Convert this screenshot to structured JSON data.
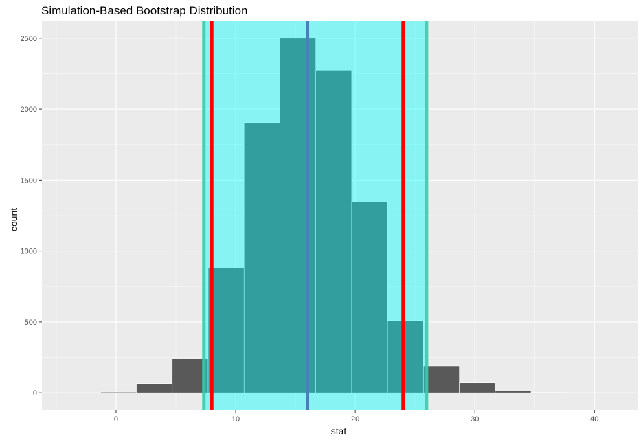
{
  "chart_data": {
    "type": "bar",
    "title": "Simulation-Based Bootstrap Distribution",
    "xlabel": "stat",
    "ylabel": "count",
    "xlim": [
      -6.2,
      43.6
    ],
    "ylim": [
      -125,
      2620
    ],
    "x_ticks": [
      0,
      10,
      20,
      30,
      40
    ],
    "y_ticks": [
      0,
      500,
      1000,
      1500,
      2000,
      2500
    ],
    "grid": true,
    "bins": [
      {
        "x0": -4.3,
        "x1": -1.3,
        "count": 0
      },
      {
        "x0": -1.3,
        "x1": 1.7,
        "count": 5
      },
      {
        "x0": 1.7,
        "x1": 4.7,
        "count": 65
      },
      {
        "x0": 4.7,
        "x1": 7.7,
        "count": 240
      },
      {
        "x0": 7.7,
        "x1": 10.7,
        "count": 880
      },
      {
        "x0": 10.7,
        "x1": 13.7,
        "count": 1905
      },
      {
        "x0": 13.7,
        "x1": 16.7,
        "count": 2500
      },
      {
        "x0": 16.7,
        "x1": 19.7,
        "count": 2275
      },
      {
        "x0": 19.7,
        "x1": 22.7,
        "count": 1345
      },
      {
        "x0": 22.7,
        "x1": 25.7,
        "count": 510
      },
      {
        "x0": 25.7,
        "x1": 28.7,
        "count": 190
      },
      {
        "x0": 28.7,
        "x1": 31.7,
        "count": 70
      },
      {
        "x0": 31.7,
        "x1": 34.7,
        "count": 12
      },
      {
        "x0": 34.7,
        "x1": 37.7,
        "count": 3
      },
      {
        "x0": 37.7,
        "x1": 40.7,
        "count": 0
      }
    ],
    "shaded_interval": [
      7.2,
      26.1
    ],
    "vlines": [
      {
        "value": 8.0,
        "color": "#ff0000"
      },
      {
        "value": 16.0,
        "color": "#4682b4"
      },
      {
        "value": 24.0,
        "color": "#ff0000"
      }
    ],
    "colors": {
      "panel": "#ebebeb",
      "grid_major": "#ffffff",
      "bar_fill": "#595959",
      "bar_stroke": "#ffffff",
      "shade_fill": "#00ffff",
      "shade_edge": "#40c8a0",
      "bar_in_shade": "#4aaba0"
    }
  }
}
